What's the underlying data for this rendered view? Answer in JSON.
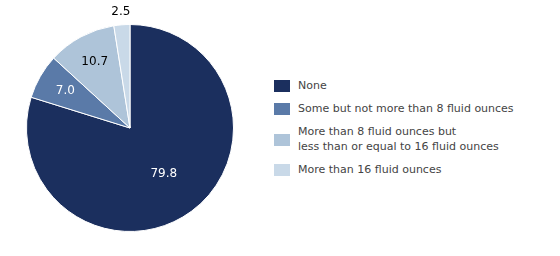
{
  "chart_data": {
    "type": "pie",
    "categories": [
      "None",
      "Some but not more than 8 fluid ounces",
      "More than 8 fluid ounces but\nless than or equal to 16 fluid ounces",
      "More than 16 fluid ounces"
    ],
    "values": [
      79.8,
      7.0,
      10.7,
      2.5
    ],
    "value_labels": [
      "79.8",
      "7.0",
      "10.7",
      "2.5"
    ],
    "colors": [
      "#1b2f5e",
      "#5a7aa8",
      "#aec4d9",
      "#c9d9e8"
    ],
    "data_labels": true,
    "legend": "right"
  }
}
